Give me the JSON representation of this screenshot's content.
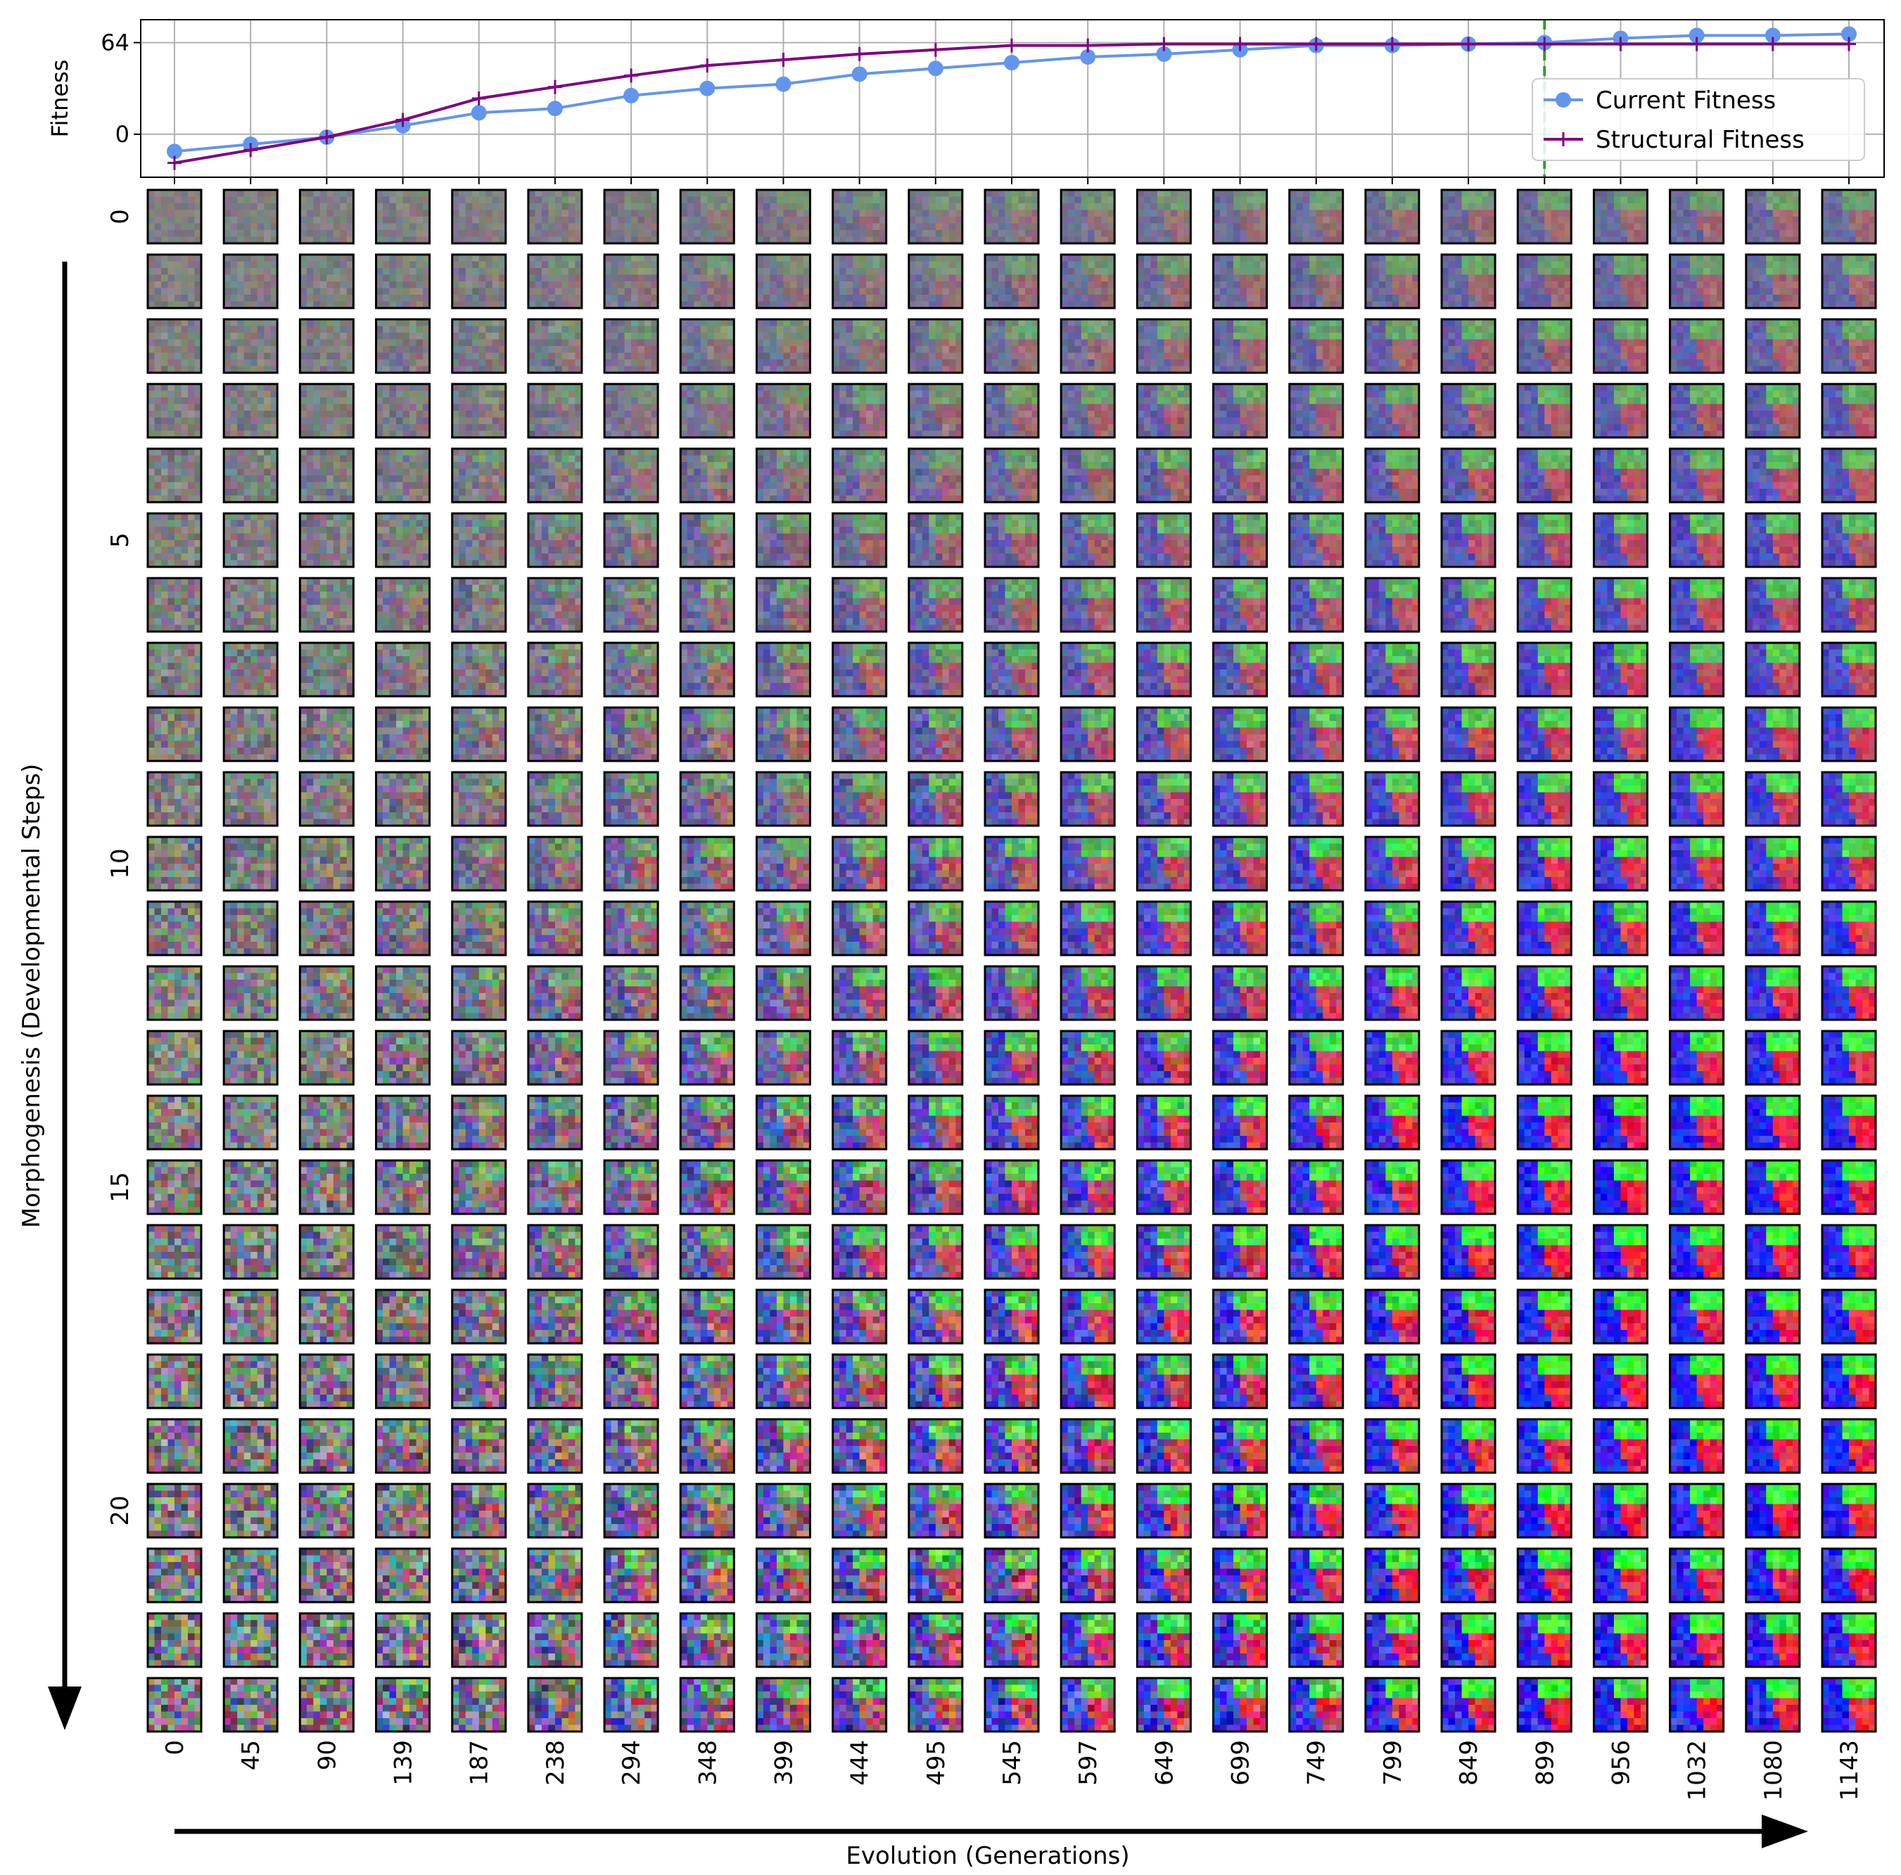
{
  "chart_data": {
    "type": "line",
    "ylabel": "Fitness",
    "yticks": [
      0,
      64
    ],
    "grid": true,
    "legend_placement": "right",
    "x": [
      0,
      45,
      90,
      139,
      187,
      238,
      294,
      348,
      399,
      444,
      495,
      545,
      597,
      649,
      699,
      749,
      799,
      849,
      899,
      956,
      1032,
      1080,
      1143
    ],
    "series": [
      {
        "name": "Current Fitness",
        "color": "#6495ed",
        "marker": "circle",
        "values": [
          -12,
          -7,
          -2,
          6,
          15,
          18,
          27,
          32,
          35,
          42,
          46,
          50,
          54,
          56,
          59,
          62,
          62,
          63,
          64,
          67,
          69,
          69,
          70
        ]
      },
      {
        "name": "Structural Fitness",
        "color": "#800080",
        "marker": "plus",
        "values": [
          -20,
          -11,
          -2,
          10,
          25,
          33,
          41,
          48,
          52,
          56,
          59,
          62,
          62,
          63,
          63,
          63,
          63,
          63,
          63,
          63,
          63,
          63,
          63
        ]
      }
    ],
    "marker_line": {
      "x": 899,
      "color": "#2ca02c",
      "style": "dashed"
    },
    "grid_panel": {
      "row_ticks": [
        "0",
        "5",
        "10",
        "15",
        "20"
      ],
      "row_tick_steps": [
        0,
        5,
        10,
        15,
        20
      ],
      "rows": 24,
      "ylabel": "Morphogenesis (Developmental Steps)",
      "xlabel": "Evolution (Generations)",
      "column_labels": [
        "0",
        "45",
        "90",
        "139",
        "187",
        "238",
        "294",
        "348",
        "399",
        "444",
        "495",
        "545",
        "597",
        "649",
        "699",
        "749",
        "799",
        "849",
        "899",
        "956",
        "1032",
        "1080",
        "1143"
      ]
    }
  }
}
